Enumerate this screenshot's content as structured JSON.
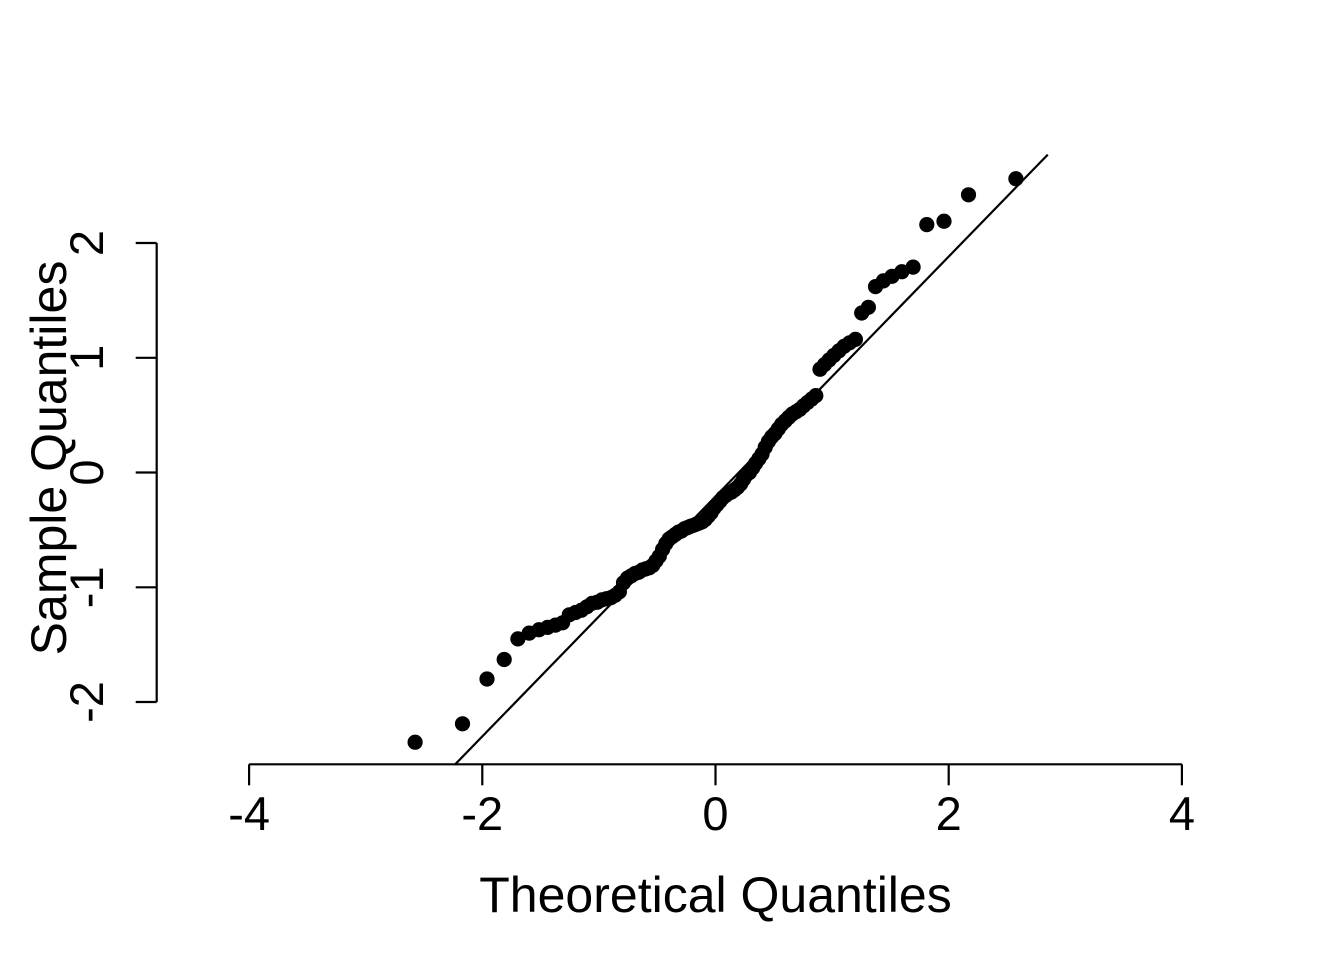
{
  "chart_data": {
    "type": "scatter",
    "title": "",
    "xlabel": "Theoretical Quantiles",
    "ylabel": "Sample Quantiles",
    "x_ticks": [
      -4,
      -2,
      0,
      2,
      4
    ],
    "y_ticks": [
      -2,
      -1,
      0,
      1,
      2
    ],
    "x_tick_labels": [
      "-4",
      "-2",
      "0",
      "2",
      "4"
    ],
    "y_tick_labels": [
      "-2",
      "-1",
      "0",
      "1",
      "2"
    ],
    "x_axis_range": [
      -4,
      4
    ],
    "y_axis_range": [
      -2,
      2
    ],
    "grid": false,
    "legend_position": "none",
    "marker": {
      "shape": "filled-circle",
      "color": "#000000"
    },
    "line_color": "#000000",
    "background_color": "#ffffff",
    "n_points": 100,
    "points": {
      "x": [
        -2.576,
        -2.17,
        -1.96,
        -1.812,
        -1.695,
        -1.598,
        -1.514,
        -1.44,
        -1.372,
        -1.311,
        -1.254,
        -1.2,
        -1.15,
        -1.103,
        -1.058,
        -1.015,
        -0.974,
        -0.935,
        -0.896,
        -0.86,
        -0.824,
        -0.789,
        -0.755,
        -0.722,
        -0.69,
        -0.659,
        -0.628,
        -0.598,
        -0.568,
        -0.539,
        -0.51,
        -0.482,
        -0.454,
        -0.426,
        -0.399,
        -0.372,
        -0.345,
        -0.319,
        -0.292,
        -0.266,
        -0.24,
        -0.215,
        -0.189,
        -0.164,
        -0.138,
        -0.113,
        -0.088,
        -0.063,
        -0.038,
        -0.013,
        0.013,
        0.038,
        0.063,
        0.088,
        0.113,
        0.138,
        0.164,
        0.189,
        0.215,
        0.24,
        0.266,
        0.292,
        0.319,
        0.345,
        0.372,
        0.399,
        0.426,
        0.454,
        0.482,
        0.51,
        0.539,
        0.568,
        0.598,
        0.628,
        0.659,
        0.69,
        0.722,
        0.755,
        0.789,
        0.824,
        0.86,
        0.896,
        0.935,
        0.974,
        1.015,
        1.058,
        1.103,
        1.15,
        1.2,
        1.254,
        1.311,
        1.372,
        1.44,
        1.514,
        1.598,
        1.695,
        1.812,
        1.96,
        2.17,
        2.576
      ],
      "y": [
        -2.35,
        -2.19,
        -1.8,
        -1.63,
        -1.45,
        -1.4,
        -1.37,
        -1.35,
        -1.33,
        -1.31,
        -1.24,
        -1.22,
        -1.2,
        -1.17,
        -1.14,
        -1.13,
        -1.11,
        -1.1,
        -1.09,
        -1.07,
        -1.04,
        -0.96,
        -0.92,
        -0.9,
        -0.88,
        -0.87,
        -0.85,
        -0.84,
        -0.83,
        -0.81,
        -0.77,
        -0.73,
        -0.67,
        -0.62,
        -0.58,
        -0.56,
        -0.54,
        -0.52,
        -0.51,
        -0.49,
        -0.48,
        -0.47,
        -0.46,
        -0.45,
        -0.44,
        -0.43,
        -0.41,
        -0.38,
        -0.35,
        -0.31,
        -0.28,
        -0.25,
        -0.22,
        -0.2,
        -0.18,
        -0.17,
        -0.15,
        -0.13,
        -0.1,
        -0.06,
        -0.02,
        0.0,
        0.04,
        0.08,
        0.12,
        0.16,
        0.22,
        0.27,
        0.31,
        0.34,
        0.38,
        0.42,
        0.45,
        0.48,
        0.51,
        0.53,
        0.55,
        0.58,
        0.61,
        0.64,
        0.67,
        0.9,
        0.94,
        0.98,
        1.02,
        1.06,
        1.1,
        1.13,
        1.16,
        1.39,
        1.44,
        1.62,
        1.67,
        1.71,
        1.75,
        1.79,
        2.16,
        2.19,
        2.42,
        2.56
      ]
    },
    "reference_line": {
      "x1": -2.23,
      "y1": -2.54,
      "x2": 2.85,
      "y2": 2.77
    }
  }
}
